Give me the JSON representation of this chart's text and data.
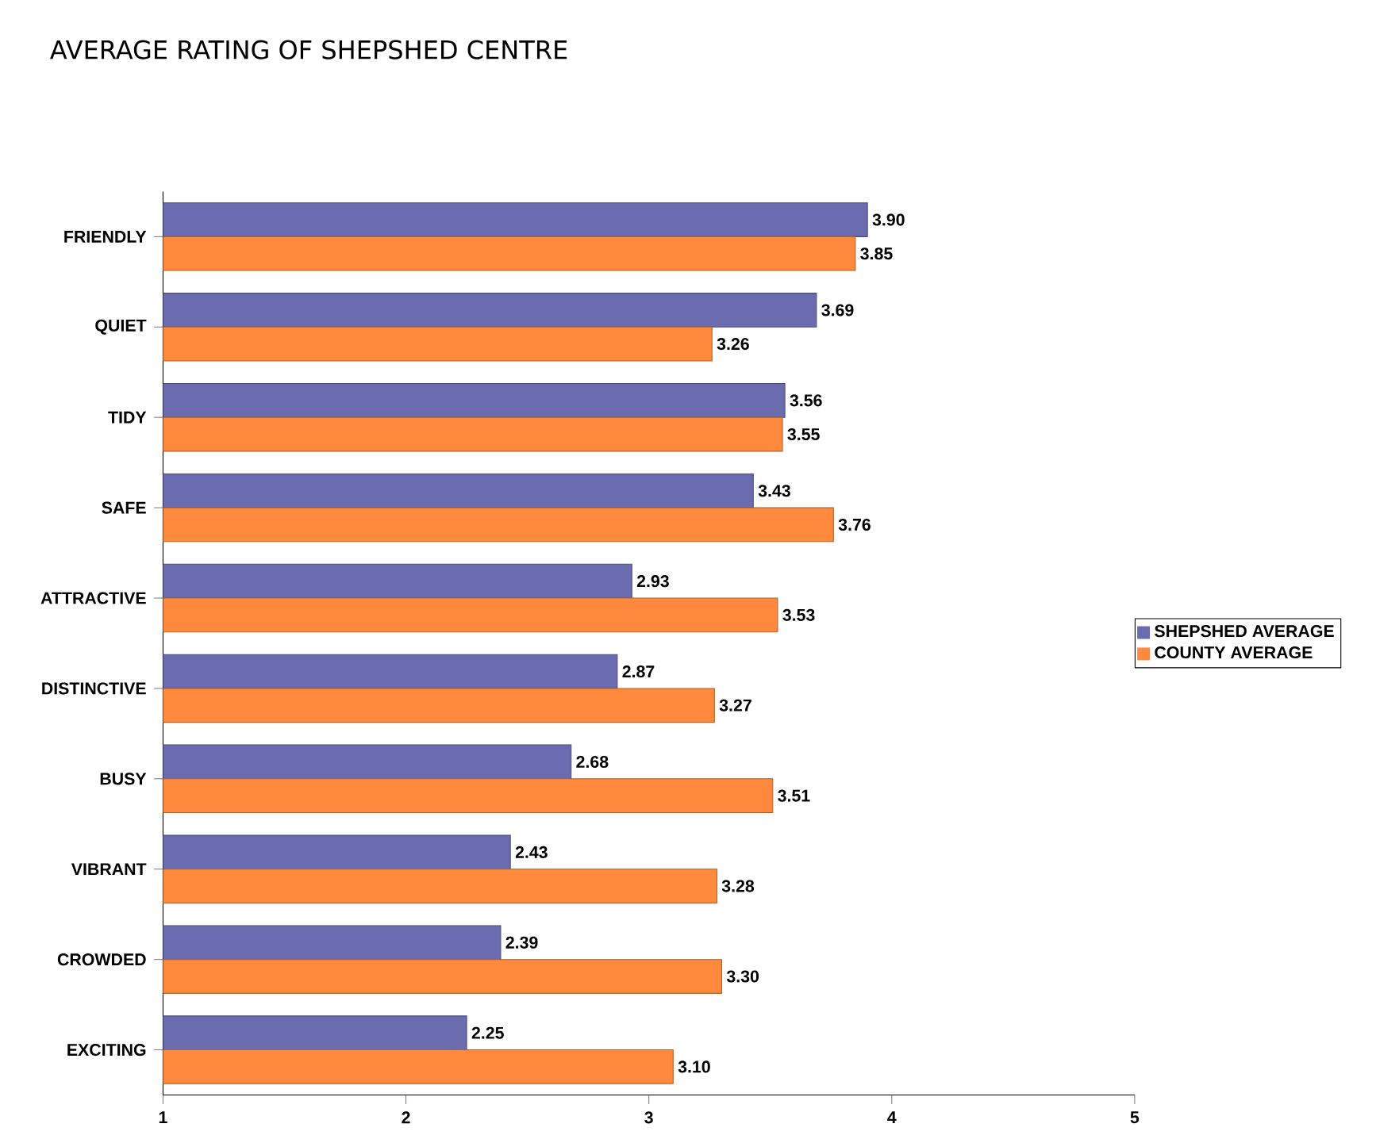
{
  "chart_data": {
    "type": "bar",
    "orientation": "horizontal",
    "title": "AVERAGE RATING OF SHEPSHED CENTRE",
    "categories": [
      "FRIENDLY",
      "QUIET",
      "TIDY",
      "SAFE",
      "ATTRACTIVE",
      "DISTINCTIVE",
      "BUSY",
      "VIBRANT",
      "CROWDED",
      "EXCITING"
    ],
    "series": [
      {
        "name": "SHEPSHED AVERAGE",
        "color": "#6b6bb0",
        "values": [
          3.9,
          3.69,
          3.56,
          3.43,
          2.93,
          2.87,
          2.68,
          2.43,
          2.39,
          2.25
        ],
        "value_labels": [
          "3.90",
          "3.69",
          "3.56",
          "3.43",
          "2.93",
          "2.87",
          "2.68",
          "2.43",
          "2.39",
          "2.25"
        ]
      },
      {
        "name": "COUNTY AVERAGE",
        "color": "#ff8a3d",
        "values": [
          3.85,
          3.26,
          3.55,
          3.76,
          3.53,
          3.27,
          3.51,
          3.28,
          3.3,
          3.1
        ],
        "value_labels": [
          "3.85",
          "3.26",
          "3.55",
          "3.76",
          "3.53",
          "3.27",
          "3.51",
          "3.28",
          "3.30",
          "3.10"
        ]
      }
    ],
    "xlim": [
      1,
      5
    ],
    "xticks": [
      1,
      2,
      3,
      4,
      5
    ],
    "legend": "right",
    "grid": false
  }
}
